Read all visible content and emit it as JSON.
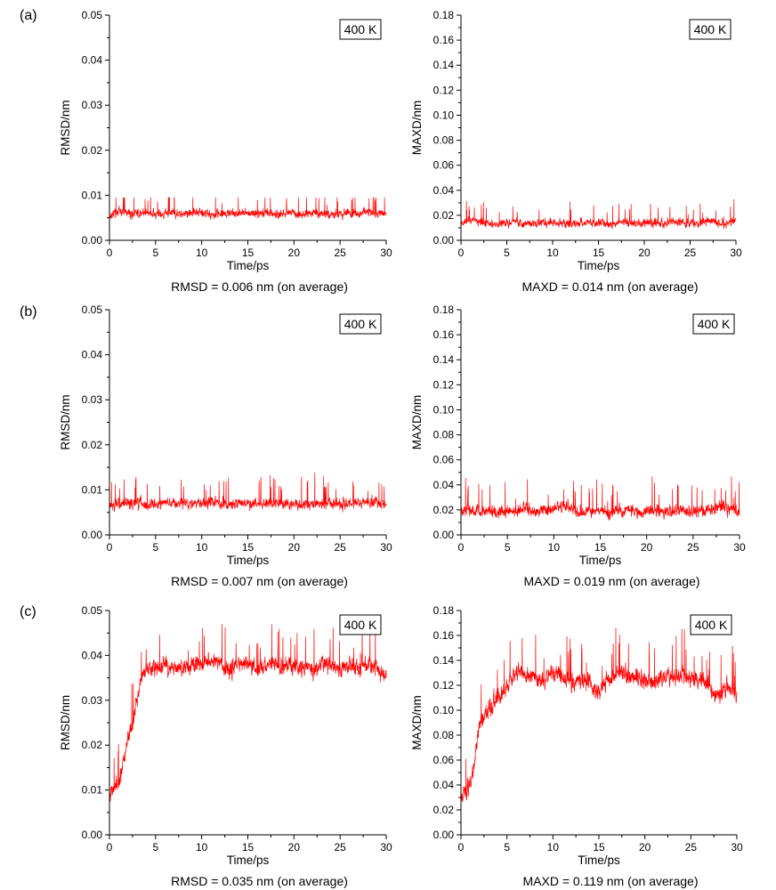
{
  "panel_labels": [
    "(a)",
    "(b)",
    "(c)"
  ],
  "series_color": "#ff0000",
  "chart_data": [
    {
      "id": "a-rmsd",
      "type": "line",
      "panel": "(a)",
      "xlabel": "Time/ps",
      "ylabel": "RMSD/nm",
      "xlim": [
        0,
        30
      ],
      "ylim": [
        0,
        0.05
      ],
      "xticks": [
        0,
        5,
        10,
        15,
        20,
        25,
        30
      ],
      "yticks": [
        0.0,
        0.01,
        0.02,
        0.03,
        0.04,
        0.05
      ],
      "ytick_labels": [
        "0.00",
        "0.01",
        "0.02",
        "0.03",
        "0.04",
        "0.05"
      ],
      "annotation": "400 K",
      "caption": "RMSD = 0.006 nm (on average)",
      "series": [
        {
          "name": "RMSD",
          "x": [
            0,
            1,
            2,
            3,
            4,
            5,
            6,
            7,
            8,
            9,
            10,
            11,
            12,
            13,
            14,
            15,
            16,
            17,
            18,
            19,
            20,
            21,
            22,
            23,
            24,
            25,
            26,
            27,
            28,
            29,
            30
          ],
          "y": [
            0.0055,
            0.0065,
            0.006,
            0.0058,
            0.0062,
            0.0057,
            0.006,
            0.0061,
            0.0059,
            0.006,
            0.0063,
            0.0058,
            0.006,
            0.0061,
            0.0057,
            0.0062,
            0.0059,
            0.006,
            0.0058,
            0.0061,
            0.006,
            0.0057,
            0.0062,
            0.0059,
            0.0056,
            0.0058,
            0.006,
            0.0059,
            0.0062,
            0.0058,
            0.0062
          ],
          "noise": 0.0018,
          "spike_min": 0.0035,
          "spike_max": 0.0095
        }
      ]
    },
    {
      "id": "a-maxd",
      "type": "line",
      "panel": "(a)",
      "xlabel": "Time/ps",
      "ylabel": "MAXD/nm",
      "xlim": [
        0,
        30
      ],
      "ylim": [
        0,
        0.18
      ],
      "xticks": [
        0,
        5,
        10,
        15,
        20,
        25,
        30
      ],
      "yticks": [
        0.0,
        0.02,
        0.04,
        0.06,
        0.08,
        0.1,
        0.12,
        0.14,
        0.16,
        0.18
      ],
      "ytick_labels": [
        "0.00",
        "0.02",
        "0.04",
        "0.06",
        "0.08",
        "0.10",
        "0.12",
        "0.14",
        "0.16",
        "0.18"
      ],
      "annotation": "400 K",
      "caption": "MAXD = 0.014 nm (on average)",
      "series": [
        {
          "name": "MAXD",
          "x": [
            0,
            1,
            2,
            3,
            4,
            5,
            6,
            7,
            8,
            9,
            10,
            11,
            12,
            13,
            14,
            15,
            16,
            17,
            18,
            19,
            20,
            21,
            22,
            23,
            24,
            25,
            26,
            27,
            28,
            29,
            30
          ],
          "y": [
            0.014,
            0.016,
            0.015,
            0.014,
            0.013,
            0.014,
            0.015,
            0.014,
            0.013,
            0.014,
            0.015,
            0.014,
            0.013,
            0.014,
            0.015,
            0.014,
            0.013,
            0.014,
            0.015,
            0.013,
            0.014,
            0.014,
            0.013,
            0.015,
            0.014,
            0.013,
            0.014,
            0.015,
            0.014,
            0.013,
            0.015
          ],
          "noise": 0.006,
          "spike_min": 0.007,
          "spike_max": 0.034
        }
      ]
    },
    {
      "id": "b-rmsd",
      "type": "line",
      "panel": "(b)",
      "xlabel": "Time/ps",
      "ylabel": "RMSD/nm",
      "xlim": [
        0,
        30
      ],
      "ylim": [
        0,
        0.05
      ],
      "xticks": [
        0,
        5,
        10,
        15,
        20,
        25,
        30
      ],
      "yticks": [
        0.0,
        0.01,
        0.02,
        0.03,
        0.04,
        0.05
      ],
      "ytick_labels": [
        "0.00",
        "0.01",
        "0.02",
        "0.03",
        "0.04",
        "0.05"
      ],
      "annotation": "400 K",
      "caption": "RMSD = 0.007 nm (on average)",
      "series": [
        {
          "name": "RMSD",
          "x": [
            0,
            1,
            2,
            3,
            4,
            5,
            6,
            7,
            8,
            9,
            10,
            11,
            12,
            13,
            14,
            15,
            16,
            17,
            18,
            19,
            20,
            21,
            22,
            23,
            24,
            25,
            26,
            27,
            28,
            29,
            30
          ],
          "y": [
            0.0065,
            0.007,
            0.0068,
            0.0072,
            0.0069,
            0.007,
            0.0071,
            0.0068,
            0.0072,
            0.007,
            0.0069,
            0.0075,
            0.0071,
            0.0068,
            0.007,
            0.0069,
            0.007,
            0.0068,
            0.0071,
            0.0069,
            0.007,
            0.0068,
            0.0071,
            0.0069,
            0.007,
            0.0068,
            0.0071,
            0.0069,
            0.0072,
            0.0074,
            0.007
          ],
          "noise": 0.0022,
          "spike_min": 0.0035,
          "spike_max": 0.0152
        }
      ]
    },
    {
      "id": "b-maxd",
      "type": "line",
      "panel": "(b)",
      "xlabel": "Time/ps",
      "ylabel": "MAXD/nm",
      "xlim": [
        0,
        30
      ],
      "ylim": [
        0,
        0.18
      ],
      "xticks": [
        0,
        5,
        10,
        15,
        20,
        25,
        30
      ],
      "yticks": [
        0.0,
        0.02,
        0.04,
        0.06,
        0.08,
        0.1,
        0.12,
        0.14,
        0.16,
        0.18
      ],
      "ytick_labels": [
        "0.00",
        "0.02",
        "0.04",
        "0.06",
        "0.08",
        "0.10",
        "0.12",
        "0.14",
        "0.16",
        "0.18"
      ],
      "annotation": "400 K",
      "caption": "MAXD = 0.019 nm (on average)",
      "series": [
        {
          "name": "MAXD",
          "x": [
            0,
            1,
            2,
            3,
            4,
            5,
            6,
            7,
            8,
            9,
            10,
            11,
            12,
            13,
            14,
            15,
            16,
            17,
            18,
            19,
            20,
            21,
            22,
            23,
            24,
            25,
            26,
            27,
            28,
            29,
            30
          ],
          "y": [
            0.018,
            0.02,
            0.019,
            0.02,
            0.018,
            0.019,
            0.02,
            0.021,
            0.019,
            0.02,
            0.022,
            0.024,
            0.02,
            0.018,
            0.019,
            0.02,
            0.018,
            0.019,
            0.02,
            0.018,
            0.019,
            0.02,
            0.018,
            0.019,
            0.02,
            0.018,
            0.019,
            0.02,
            0.022,
            0.021,
            0.019
          ],
          "noise": 0.009,
          "spike_min": 0.008,
          "spike_max": 0.061
        }
      ]
    },
    {
      "id": "c-rmsd",
      "type": "line",
      "panel": "(c)",
      "xlabel": "Time/ps",
      "ylabel": "RMSD/nm",
      "xlim": [
        0,
        30
      ],
      "ylim": [
        0,
        0.05
      ],
      "xticks": [
        0,
        5,
        10,
        15,
        20,
        25,
        30
      ],
      "yticks": [
        0.0,
        0.01,
        0.02,
        0.03,
        0.04,
        0.05
      ],
      "ytick_labels": [
        "0.00",
        "0.01",
        "0.02",
        "0.03",
        "0.04",
        "0.05"
      ],
      "annotation": "400 K",
      "caption": "RMSD = 0.035 nm (on average)",
      "series": [
        {
          "name": "RMSD",
          "x": [
            0,
            0.5,
            1,
            1.5,
            2,
            2.5,
            3,
            3.5,
            4,
            5,
            6,
            7,
            8,
            9,
            10,
            11,
            12,
            13,
            14,
            15,
            16,
            17,
            18,
            19,
            20,
            21,
            22,
            23,
            24,
            25,
            26,
            27,
            28,
            29,
            30
          ],
          "y": [
            0.009,
            0.011,
            0.012,
            0.016,
            0.022,
            0.025,
            0.03,
            0.035,
            0.037,
            0.037,
            0.038,
            0.037,
            0.037,
            0.038,
            0.038,
            0.039,
            0.038,
            0.037,
            0.038,
            0.038,
            0.037,
            0.038,
            0.038,
            0.037,
            0.038,
            0.037,
            0.037,
            0.038,
            0.038,
            0.037,
            0.038,
            0.037,
            0.038,
            0.037,
            0.035
          ],
          "noise": 0.0035,
          "spike_min": 0.005,
          "spike_max": 0.0485
        }
      ]
    },
    {
      "id": "c-maxd",
      "type": "line",
      "panel": "(c)",
      "xlabel": "Time/ps",
      "ylabel": "MAXD/nm",
      "xlim": [
        0,
        30
      ],
      "ylim": [
        0,
        0.18
      ],
      "xticks": [
        0,
        5,
        10,
        15,
        20,
        25,
        30
      ],
      "yticks": [
        0.0,
        0.02,
        0.04,
        0.06,
        0.08,
        0.1,
        0.12,
        0.14,
        0.16,
        0.18
      ],
      "ytick_labels": [
        "0.00",
        "0.02",
        "0.04",
        "0.06",
        "0.08",
        "0.10",
        "0.12",
        "0.14",
        "0.16",
        "0.18"
      ],
      "annotation": "400 K",
      "caption": "MAXD = 0.119 nm (on average)",
      "series": [
        {
          "name": "MAXD",
          "x": [
            0,
            0.5,
            1,
            1.5,
            2,
            2.5,
            3,
            3.5,
            4,
            5,
            6,
            7,
            8,
            9,
            10,
            11,
            12,
            13,
            14,
            15,
            16,
            17,
            18,
            19,
            20,
            21,
            22,
            23,
            24,
            25,
            26,
            27,
            28,
            29,
            30
          ],
          "y": [
            0.03,
            0.035,
            0.04,
            0.06,
            0.09,
            0.095,
            0.1,
            0.105,
            0.11,
            0.12,
            0.13,
            0.128,
            0.125,
            0.125,
            0.13,
            0.128,
            0.12,
            0.125,
            0.122,
            0.115,
            0.125,
            0.13,
            0.128,
            0.126,
            0.125,
            0.122,
            0.127,
            0.125,
            0.128,
            0.126,
            0.125,
            0.12,
            0.11,
            0.12,
            0.11
          ],
          "noise": 0.013,
          "spike_min": 0.014,
          "spike_max": 0.178
        }
      ]
    }
  ]
}
